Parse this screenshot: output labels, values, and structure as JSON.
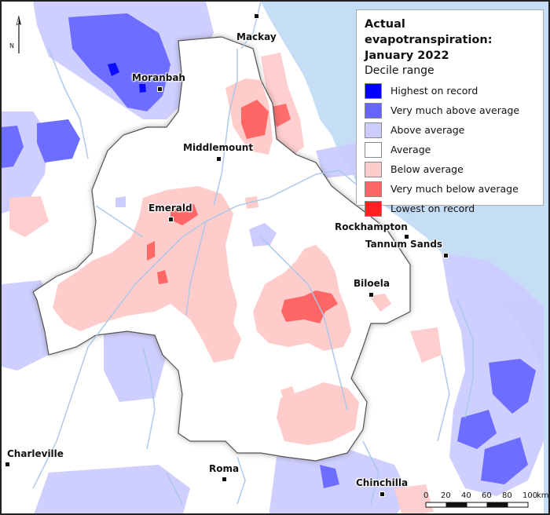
{
  "legend": {
    "title_line1": "Actual evapotranspiration:",
    "title_line2": "January 2022",
    "subtitle": "Decile range",
    "items": [
      {
        "label": "Highest on record",
        "color": "#0000ff"
      },
      {
        "label": "Very much above average",
        "color": "#6666ff"
      },
      {
        "label": "Above average",
        "color": "#ccccff"
      },
      {
        "label": "Average",
        "color": "#ffffff"
      },
      {
        "label": "Below average",
        "color": "#ffcccc"
      },
      {
        "label": "Very much below average",
        "color": "#ff6666"
      },
      {
        "label": "Lowest on record",
        "color": "#ff2020"
      }
    ]
  },
  "north_arrow": {
    "label": "N"
  },
  "scale_bar": {
    "ticks": [
      "0",
      "20",
      "40",
      "60",
      "80",
      "100"
    ],
    "unit": "km"
  },
  "towns": {
    "mackay": "Mackay",
    "moranbah": "Moranbah",
    "middlemount": "Middlemount",
    "emerald": "Emerald",
    "rockhampton": "Rockhampton",
    "tannum_sands": "Tannum Sands",
    "biloela": "Biloela",
    "charleville": "Charleville",
    "roma": "Roma",
    "chinchilla": "Chinchilla"
  },
  "colors": {
    "ocean": "#c6def5",
    "land": "#ffffff",
    "outside_tint": "#ffffff",
    "river": "#a9c8e8",
    "catchment_border": "#555555"
  }
}
